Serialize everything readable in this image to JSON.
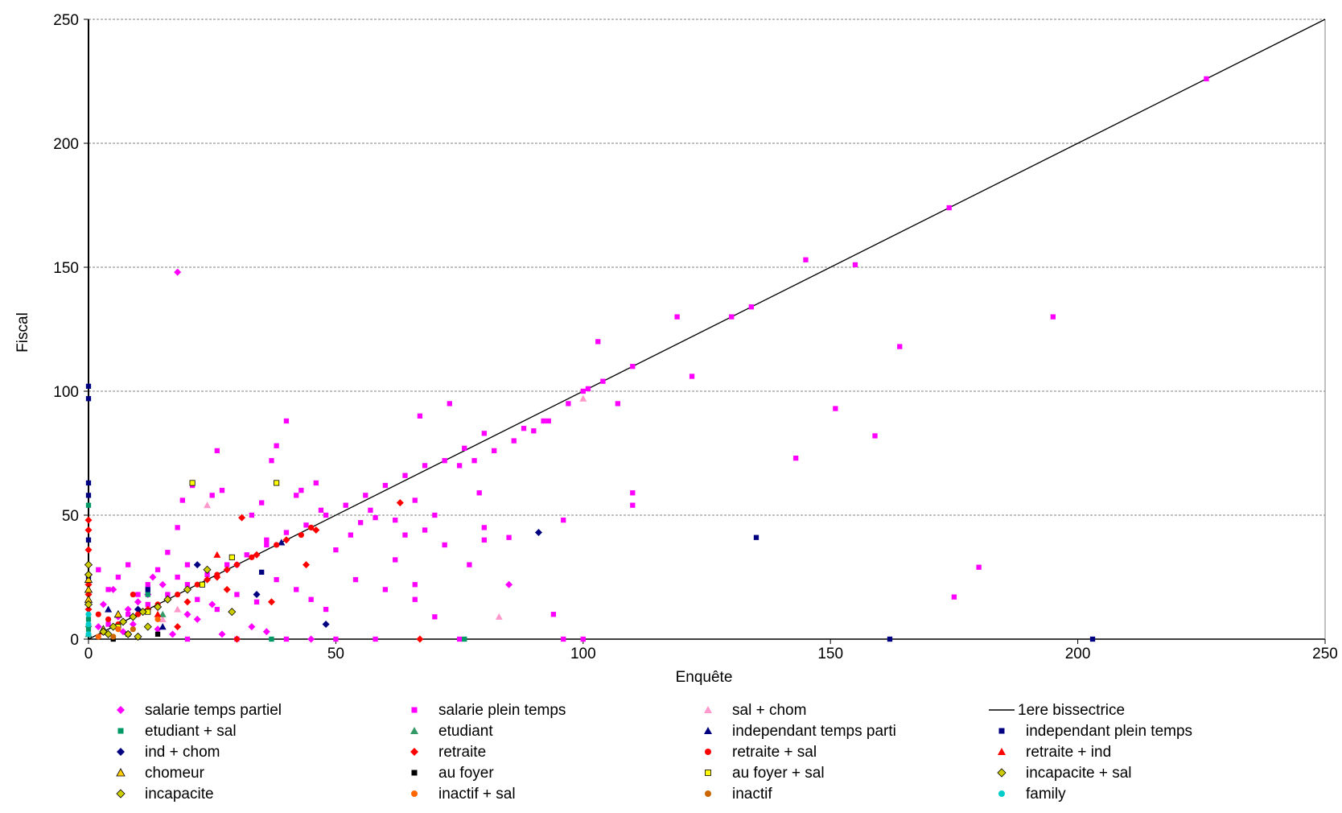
{
  "chart_data": {
    "type": "scatter",
    "xlabel": "Enquête",
    "ylabel": "Fiscal",
    "xlim": [
      0,
      250
    ],
    "ylim": [
      0,
      250
    ],
    "x_ticks": [
      "0",
      "50",
      "100",
      "150",
      "200",
      "250"
    ],
    "y_ticks": [
      "0",
      "50",
      "100",
      "150",
      "200",
      "250"
    ],
    "grid": "horizontal dashed",
    "legend_position": "bottom",
    "reference_line": {
      "name": "1ere bissectrice",
      "x": [
        0,
        250
      ],
      "y": [
        0,
        250
      ]
    },
    "series": [
      {
        "name": "salarie temps partiel",
        "marker": "diamond",
        "color": "#ff00ff",
        "points": [
          [
            18,
            148
          ],
          [
            3,
            14
          ],
          [
            5,
            20
          ],
          [
            8,
            12
          ],
          [
            10,
            15
          ],
          [
            12,
            18
          ],
          [
            15,
            22
          ],
          [
            6,
            9
          ],
          [
            9,
            6
          ],
          [
            2,
            5
          ],
          [
            14,
            4
          ],
          [
            17,
            2
          ],
          [
            20,
            10
          ],
          [
            25,
            14
          ],
          [
            4,
            2
          ],
          [
            7,
            3
          ],
          [
            30,
            30
          ],
          [
            22,
            8
          ],
          [
            11,
            11
          ],
          [
            13,
            25
          ],
          [
            85,
            22
          ],
          [
            27,
            2
          ],
          [
            33,
            5
          ],
          [
            36,
            3
          ],
          [
            45,
            0
          ]
        ]
      },
      {
        "name": "salarie plein temps",
        "marker": "square",
        "color": "#ff00ff",
        "points": [
          [
            226,
            226
          ],
          [
            174,
            174
          ],
          [
            145,
            153
          ],
          [
            155,
            151
          ],
          [
            134,
            134
          ],
          [
            130,
            130
          ],
          [
            119,
            130
          ],
          [
            195,
            130
          ],
          [
            103,
            120
          ],
          [
            164,
            118
          ],
          [
            122,
            106
          ],
          [
            110,
            110
          ],
          [
            101,
            101
          ],
          [
            104,
            104
          ],
          [
            107,
            95
          ],
          [
            151,
            93
          ],
          [
            100,
            100
          ],
          [
            93,
            88
          ],
          [
            88,
            85
          ],
          [
            80,
            83
          ],
          [
            76,
            77
          ],
          [
            72,
            72
          ],
          [
            68,
            70
          ],
          [
            64,
            66
          ],
          [
            60,
            62
          ],
          [
            56,
            58
          ],
          [
            52,
            54
          ],
          [
            48,
            50
          ],
          [
            44,
            46
          ],
          [
            40,
            43
          ],
          [
            36,
            38
          ],
          [
            32,
            34
          ],
          [
            28,
            30
          ],
          [
            24,
            26
          ],
          [
            20,
            22
          ],
          [
            16,
            18
          ],
          [
            12,
            14
          ],
          [
            8,
            10
          ],
          [
            4,
            6
          ],
          [
            73,
            95
          ],
          [
            67,
            90
          ],
          [
            40,
            88
          ],
          [
            38,
            78
          ],
          [
            26,
            76
          ],
          [
            37,
            72
          ],
          [
            46,
            63
          ],
          [
            42,
            58
          ],
          [
            110,
            59
          ],
          [
            110,
            54
          ],
          [
            79,
            59
          ],
          [
            159,
            82
          ],
          [
            143,
            73
          ],
          [
            96,
            48
          ],
          [
            85,
            41
          ],
          [
            80,
            40
          ],
          [
            94,
            10
          ],
          [
            72,
            38
          ],
          [
            80,
            45
          ],
          [
            66,
            56
          ],
          [
            58,
            49
          ],
          [
            55,
            47
          ],
          [
            50,
            36
          ],
          [
            53,
            42
          ],
          [
            62,
            32
          ],
          [
            66,
            22
          ],
          [
            66,
            16
          ],
          [
            70,
            9
          ],
          [
            77,
            30
          ],
          [
            175,
            17
          ],
          [
            180,
            29
          ],
          [
            60,
            20
          ],
          [
            54,
            24
          ],
          [
            48,
            12
          ],
          [
            45,
            16
          ],
          [
            42,
            20
          ],
          [
            38,
            24
          ],
          [
            34,
            15
          ],
          [
            30,
            18
          ],
          [
            26,
            12
          ],
          [
            22,
            16
          ],
          [
            20,
            30
          ],
          [
            18,
            25
          ],
          [
            16,
            35
          ],
          [
            14,
            28
          ],
          [
            12,
            22
          ],
          [
            10,
            18
          ],
          [
            8,
            30
          ],
          [
            6,
            25
          ],
          [
            4,
            20
          ],
          [
            2,
            28
          ],
          [
            19,
            56
          ],
          [
            21,
            62
          ],
          [
            18,
            45
          ],
          [
            25,
            58
          ],
          [
            27,
            60
          ],
          [
            33,
            50
          ],
          [
            35,
            55
          ],
          [
            36,
            40
          ],
          [
            43,
            60
          ],
          [
            47,
            52
          ],
          [
            57,
            52
          ],
          [
            62,
            48
          ],
          [
            64,
            42
          ],
          [
            68,
            44
          ],
          [
            70,
            50
          ],
          [
            75,
            70
          ],
          [
            78,
            72
          ],
          [
            82,
            76
          ],
          [
            86,
            80
          ],
          [
            90,
            84
          ],
          [
            92,
            88
          ],
          [
            97,
            95
          ],
          [
            20,
            0
          ],
          [
            30,
            0
          ],
          [
            40,
            0
          ],
          [
            50,
            0
          ],
          [
            58,
            0
          ],
          [
            75,
            0
          ],
          [
            96,
            0
          ],
          [
            100,
            0
          ]
        ]
      },
      {
        "name": "sal + chom",
        "marker": "triangle",
        "color": "#ff99cc",
        "points": [
          [
            100,
            97
          ],
          [
            83,
            9
          ],
          [
            24,
            54
          ],
          [
            15,
            8
          ],
          [
            18,
            12
          ]
        ]
      },
      {
        "name": "1ere bissectrice",
        "marker": "line",
        "color": "#000000",
        "points": []
      },
      {
        "name": "etudiant + sal",
        "marker": "square",
        "color": "#009966",
        "points": [
          [
            0,
            54
          ],
          [
            0,
            4
          ],
          [
            0,
            8
          ],
          [
            37,
            0
          ],
          [
            76,
            0
          ],
          [
            12,
            18
          ]
        ]
      },
      {
        "name": "etudiant",
        "marker": "triangle",
        "color": "#339966",
        "points": [
          [
            0,
            2
          ],
          [
            0,
            6
          ],
          [
            15,
            10
          ]
        ]
      },
      {
        "name": "independant temps parti",
        "marker": "triangle",
        "color": "#000080",
        "points": [
          [
            39,
            39
          ],
          [
            15,
            5
          ],
          [
            4,
            12
          ]
        ]
      },
      {
        "name": "independant plein temps",
        "marker": "square",
        "color": "#000080",
        "points": [
          [
            0,
            102
          ],
          [
            0,
            97
          ],
          [
            0,
            63
          ],
          [
            0,
            58
          ],
          [
            135,
            41
          ],
          [
            162,
            0
          ],
          [
            203,
            0
          ],
          [
            0,
            40
          ],
          [
            0,
            25
          ],
          [
            12,
            20
          ],
          [
            35,
            27
          ]
        ]
      },
      {
        "name": "ind + chom",
        "marker": "diamond",
        "color": "#000080",
        "points": [
          [
            91,
            43
          ],
          [
            48,
            6
          ],
          [
            34,
            18
          ],
          [
            22,
            30
          ],
          [
            10,
            12
          ]
        ]
      },
      {
        "name": "retraite",
        "marker": "diamond",
        "color": "#ff0000",
        "points": [
          [
            63,
            55
          ],
          [
            46,
            44
          ],
          [
            40,
            40
          ],
          [
            34,
            34
          ],
          [
            28,
            28
          ],
          [
            24,
            24
          ],
          [
            20,
            20
          ],
          [
            16,
            16
          ],
          [
            12,
            12
          ],
          [
            0,
            48
          ],
          [
            0,
            44
          ],
          [
            0,
            36
          ],
          [
            0,
            30
          ],
          [
            0,
            22
          ],
          [
            0,
            18
          ],
          [
            0,
            12
          ],
          [
            67,
            0
          ],
          [
            31,
            49
          ],
          [
            26,
            25
          ],
          [
            28,
            20
          ],
          [
            44,
            30
          ],
          [
            37,
            15
          ],
          [
            20,
            15
          ],
          [
            18,
            5
          ],
          [
            30,
            0
          ]
        ]
      },
      {
        "name": "retraite + sal",
        "marker": "circle",
        "color": "#ff0000",
        "points": [
          [
            45,
            45
          ],
          [
            43,
            42
          ],
          [
            38,
            38
          ],
          [
            33,
            33
          ],
          [
            30,
            30
          ],
          [
            26,
            26
          ],
          [
            22,
            22
          ],
          [
            18,
            18
          ],
          [
            14,
            14
          ],
          [
            10,
            10
          ],
          [
            6,
            6
          ],
          [
            9,
            18
          ],
          [
            4,
            8
          ],
          [
            2,
            10
          ]
        ]
      },
      {
        "name": "retraite + ind",
        "marker": "triangle",
        "color": "#ff0000",
        "points": [
          [
            26,
            34
          ],
          [
            14,
            10
          ],
          [
            3,
            3
          ]
        ]
      },
      {
        "name": "chomeur",
        "marker": "triangle",
        "color": "#ffcc00",
        "points": [
          [
            0,
            24
          ],
          [
            0,
            20
          ],
          [
            0,
            16
          ],
          [
            6,
            10
          ],
          [
            3,
            4
          ]
        ]
      },
      {
        "name": "au foyer",
        "marker": "square",
        "color": "#000000",
        "points": [
          [
            8,
            2
          ],
          [
            14,
            2
          ],
          [
            5,
            0
          ]
        ]
      },
      {
        "name": "au foyer + sal",
        "marker": "square",
        "color": "#ffff00",
        "points": [
          [
            21,
            63
          ],
          [
            38,
            63
          ],
          [
            29,
            33
          ],
          [
            23,
            22
          ],
          [
            12,
            11
          ],
          [
            6,
            5
          ]
        ]
      },
      {
        "name": "incapacite + sal",
        "marker": "diamond",
        "color": "#cccc00",
        "points": [
          [
            24,
            28
          ],
          [
            20,
            20
          ],
          [
            16,
            16
          ],
          [
            14,
            13
          ],
          [
            11,
            11
          ],
          [
            9,
            9
          ],
          [
            7,
            7
          ],
          [
            5,
            5
          ],
          [
            3,
            3
          ],
          [
            29,
            11
          ],
          [
            12,
            5
          ],
          [
            8,
            2
          ]
        ]
      },
      {
        "name": "incapacite",
        "marker": "diamond",
        "color": "#cccc00",
        "points": [
          [
            0,
            30
          ],
          [
            0,
            26
          ],
          [
            0,
            14
          ],
          [
            4,
            2
          ],
          [
            10,
            1
          ]
        ]
      },
      {
        "name": "inactif + sal",
        "marker": "circle",
        "color": "#ff6600",
        "points": [
          [
            14,
            8
          ],
          [
            6,
            4
          ],
          [
            2,
            1
          ]
        ]
      },
      {
        "name": "inactif",
        "marker": "circle",
        "color": "#cc6600",
        "points": [
          [
            9,
            4
          ],
          [
            5,
            1
          ]
        ]
      },
      {
        "name": "family",
        "marker": "circle",
        "color": "#00cccc",
        "points": [
          [
            0,
            10
          ],
          [
            0,
            6
          ],
          [
            0,
            2
          ]
        ]
      }
    ]
  }
}
